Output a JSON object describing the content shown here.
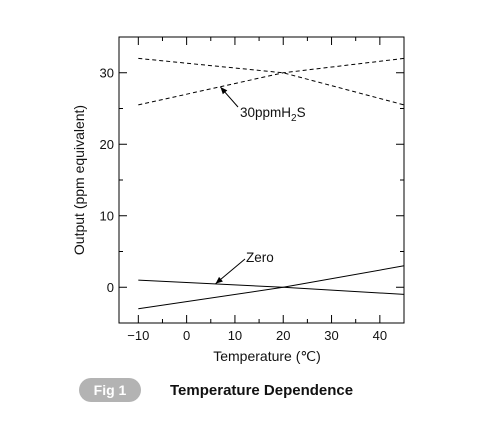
{
  "chart_data": {
    "type": "line",
    "xlabel": "Temperature (℃)",
    "ylabel": "Output (ppm equivalent)",
    "xlim": [
      -14,
      45
    ],
    "ylim": [
      -5,
      35
    ],
    "xticks": [
      -10,
      0,
      10,
      20,
      30,
      40
    ],
    "yticks": [
      0,
      10,
      20,
      30
    ],
    "grid": false,
    "series": [
      {
        "name": "30ppmH2S",
        "style": "dashed",
        "x": [
          -10,
          20,
          45
        ],
        "y": [
          32,
          30,
          25.5
        ]
      },
      {
        "name": "30ppmH2S",
        "style": "dashed",
        "x": [
          -10,
          20,
          45
        ],
        "y": [
          25.5,
          30,
          32
        ]
      },
      {
        "name": "Zero",
        "style": "solid",
        "x": [
          -10,
          20,
          45
        ],
        "y": [
          1,
          0,
          -1
        ]
      },
      {
        "name": "Zero",
        "style": "solid",
        "x": [
          -10,
          20,
          45
        ],
        "y": [
          -3,
          0,
          3
        ]
      }
    ],
    "annotations": {
      "h2s": {
        "prefix": "30ppmH",
        "sub": "2",
        "suffix": "S",
        "arrow_to": [
          7,
          28
        ]
      },
      "zero": {
        "text": "Zero",
        "arrow_to": [
          6,
          0.5
        ]
      }
    }
  },
  "figure": {
    "badge": "Fig 1",
    "title": "Temperature Dependence",
    "badge_color": "#b3b3b3"
  }
}
